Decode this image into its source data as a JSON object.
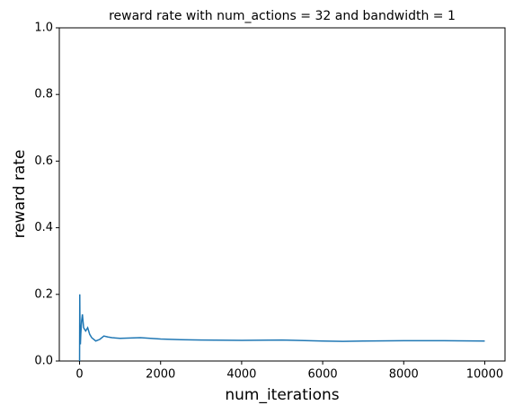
{
  "chart_data": {
    "type": "line",
    "title": "reward rate with num_actions = 32 and bandwidth = 1",
    "x_label": "num_iterations",
    "y_label": "reward rate",
    "x": [
      0,
      5,
      10,
      20,
      30,
      50,
      70,
      100,
      150,
      200,
      250,
      300,
      400,
      500,
      600,
      700,
      800,
      1000,
      1500,
      2000,
      2500,
      3000,
      4000,
      5000,
      6000,
      6500,
      7000,
      8000,
      9000,
      10000
    ],
    "series": [
      {
        "name": "reward rate",
        "color": "#1f77b4",
        "values": [
          0,
          0.2,
          0.1,
          0.05,
          0.08,
          0.12,
          0.14,
          0.1,
          0.09,
          0.1,
          0.08,
          0.07,
          0.06,
          0.065,
          0.075,
          0.072,
          0.07,
          0.068,
          0.07,
          0.066,
          0.064,
          0.063,
          0.062,
          0.063,
          0.06,
          0.059,
          0.06,
          0.061,
          0.061,
          0.06
        ]
      }
    ],
    "xlim": [
      -500,
      10500
    ],
    "ylim": [
      0,
      1
    ],
    "xticks": [
      0,
      2000,
      4000,
      6000,
      8000,
      10000
    ],
    "yticks": [
      {
        "value": 0,
        "label": "0.0"
      },
      {
        "value": 0.2,
        "label": "0.2"
      },
      {
        "value": 0.4,
        "label": "0.4"
      },
      {
        "value": 0.6,
        "label": "0.6"
      },
      {
        "value": 0.8,
        "label": "0.8"
      },
      {
        "value": 1,
        "label": "1.0"
      }
    ]
  }
}
